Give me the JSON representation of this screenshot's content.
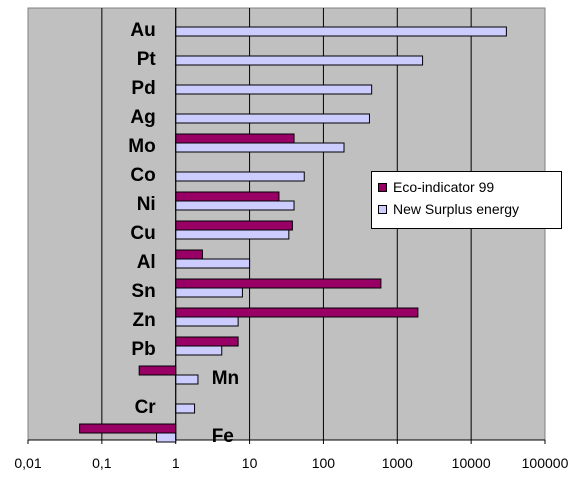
{
  "chart_data": {
    "type": "bar",
    "orientation": "horizontal",
    "x_scale": "log",
    "xlim": [
      0.01,
      100000
    ],
    "x_ticks": [
      "0,01",
      "0,1",
      "1",
      "10",
      "100",
      "1000",
      "10000",
      "100000"
    ],
    "categories": [
      "Au",
      "Pt",
      "Pd",
      "Ag",
      "Mo",
      "Co",
      "Ni",
      "Cu",
      "Al",
      "Sn",
      "Zn",
      "Pb",
      "Mn",
      "Cr",
      "Fe"
    ],
    "series": [
      {
        "name": "Eco-indicator 99",
        "color": "#990066",
        "values": [
          null,
          null,
          null,
          null,
          40,
          null,
          25,
          38,
          2.3,
          600,
          1900,
          7,
          0.32,
          null,
          0.05
        ]
      },
      {
        "name": "New Surplus energy",
        "color": "#ccccff",
        "values": [
          30000,
          2200,
          450,
          420,
          190,
          55,
          40,
          34,
          10,
          8,
          7,
          4.2,
          2,
          1.8,
          0.55
        ]
      }
    ],
    "grid": "vertical",
    "legend_position": "right"
  }
}
